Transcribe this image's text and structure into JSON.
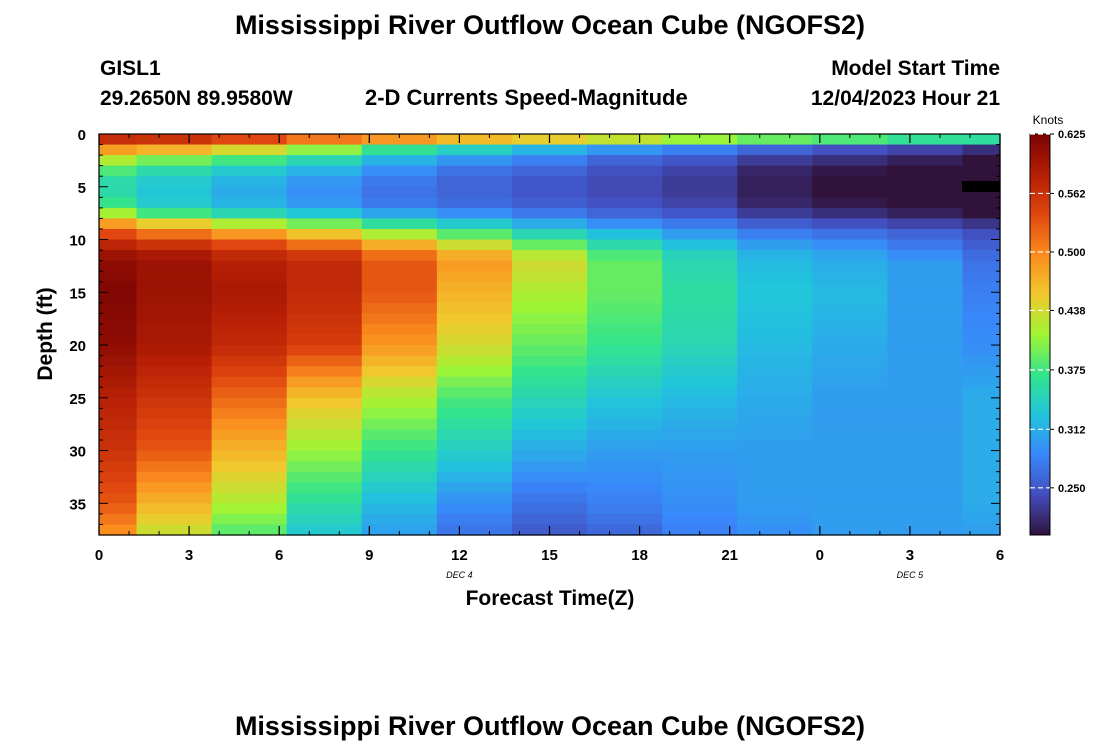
{
  "chart_data": {
    "type": "heatmap",
    "title": "Mississippi River Outflow Ocean Cube (NGOFS2)",
    "station": "GISL1",
    "location": "29.2650N  89.9580W",
    "subtitle": "2-D Currents Speed-Magnitude",
    "model_start_label": "Model Start Time",
    "model_start_value": "12/04/2023 Hour 21",
    "xlabel": "Forecast Time(Z)",
    "ylabel": "Depth (ft)",
    "x_tick_labels": [
      "0",
      "3",
      "6",
      "9",
      "12",
      "15",
      "18",
      "21",
      "0",
      "3",
      "6"
    ],
    "x_tick_hours": [
      0,
      3,
      6,
      9,
      12,
      15,
      18,
      21,
      24,
      27,
      30
    ],
    "date_labels": [
      {
        "text": "DEC 4",
        "hour": 12
      },
      {
        "text": "DEC 5",
        "hour": 27
      }
    ],
    "y_ticks": [
      0,
      5,
      10,
      15,
      20,
      25,
      30,
      35
    ],
    "ylim": [
      0,
      38
    ],
    "xlim": [
      0,
      30
    ],
    "column_hours": [
      0,
      2.5,
      5,
      7.5,
      10,
      12.5,
      15,
      17.5,
      20,
      22.5,
      25,
      27.5,
      30
    ],
    "colorbar": {
      "label": "Knots",
      "range": [
        0.2,
        0.625
      ],
      "tick_values": [
        0.625,
        0.562,
        0.5,
        0.438,
        0.375,
        0.312,
        0.25
      ],
      "tick_labels": [
        "0.625",
        "0.562",
        "0.500",
        "0.438",
        "0.375",
        "0.312",
        "0.250"
      ]
    },
    "depth_profile_ft": [
      0,
      1,
      2,
      3,
      4,
      5,
      6,
      7,
      8,
      9,
      10,
      11,
      12,
      15,
      20,
      25,
      30,
      35,
      38
    ],
    "speed_knots": [
      [
        0.6,
        0.6,
        0.6,
        0.58,
        0.58,
        0.56,
        0.56,
        0.54,
        0.52,
        0.5,
        0.5,
        0.48,
        0.48
      ],
      [
        0.53,
        0.52,
        0.48,
        0.44,
        0.4,
        0.37,
        0.34,
        0.32,
        0.3,
        0.28,
        0.26,
        0.25,
        0.24
      ],
      [
        0.44,
        0.42,
        0.4,
        0.37,
        0.33,
        0.31,
        0.29,
        0.27,
        0.26,
        0.24,
        0.23,
        0.22,
        0.2
      ],
      [
        0.4,
        0.37,
        0.35,
        0.33,
        0.3,
        0.28,
        0.27,
        0.25,
        0.24,
        0.22,
        0.21,
        0.2,
        0.19
      ],
      [
        0.36,
        0.34,
        0.32,
        0.3,
        0.28,
        0.26,
        0.25,
        0.24,
        0.23,
        0.21,
        0.2,
        0.19,
        0.19
      ],
      [
        0.35,
        0.33,
        0.31,
        0.29,
        0.27,
        0.26,
        0.25,
        0.24,
        0.23,
        0.21,
        0.2,
        0.19,
        0.18
      ],
      [
        0.36,
        0.33,
        0.31,
        0.29,
        0.27,
        0.26,
        0.25,
        0.24,
        0.23,
        0.21,
        0.2,
        0.19,
        0.18
      ],
      [
        0.38,
        0.34,
        0.32,
        0.3,
        0.28,
        0.27,
        0.26,
        0.25,
        0.24,
        0.22,
        0.21,
        0.2,
        0.19
      ],
      [
        0.45,
        0.41,
        0.38,
        0.36,
        0.33,
        0.31,
        0.29,
        0.27,
        0.26,
        0.24,
        0.23,
        0.22,
        0.21
      ],
      [
        0.52,
        0.49,
        0.46,
        0.43,
        0.39,
        0.36,
        0.33,
        0.31,
        0.29,
        0.27,
        0.26,
        0.25,
        0.24
      ],
      [
        0.56,
        0.54,
        0.52,
        0.49,
        0.45,
        0.41,
        0.37,
        0.34,
        0.31,
        0.29,
        0.28,
        0.27,
        0.25
      ],
      [
        0.59,
        0.58,
        0.56,
        0.54,
        0.5,
        0.46,
        0.41,
        0.37,
        0.34,
        0.31,
        0.3,
        0.28,
        0.26
      ],
      [
        0.61,
        0.6,
        0.58,
        0.57,
        0.53,
        0.49,
        0.44,
        0.39,
        0.35,
        0.32,
        0.31,
        0.3,
        0.27
      ],
      [
        0.62,
        0.6,
        0.59,
        0.57,
        0.53,
        0.47,
        0.42,
        0.39,
        0.36,
        0.33,
        0.32,
        0.3,
        0.28
      ],
      [
        0.61,
        0.59,
        0.57,
        0.55,
        0.49,
        0.44,
        0.39,
        0.37,
        0.35,
        0.32,
        0.31,
        0.3,
        0.29
      ],
      [
        0.58,
        0.56,
        0.52,
        0.46,
        0.42,
        0.38,
        0.35,
        0.33,
        0.32,
        0.31,
        0.3,
        0.3,
        0.31
      ],
      [
        0.56,
        0.53,
        0.47,
        0.41,
        0.37,
        0.34,
        0.31,
        0.3,
        0.3,
        0.3,
        0.3,
        0.3,
        0.31
      ],
      [
        0.53,
        0.47,
        0.42,
        0.36,
        0.32,
        0.29,
        0.27,
        0.28,
        0.29,
        0.3,
        0.3,
        0.3,
        0.31
      ],
      [
        0.49,
        0.43,
        0.38,
        0.33,
        0.3,
        0.27,
        0.25,
        0.26,
        0.28,
        0.29,
        0.3,
        0.3,
        0.3
      ]
    ]
  }
}
